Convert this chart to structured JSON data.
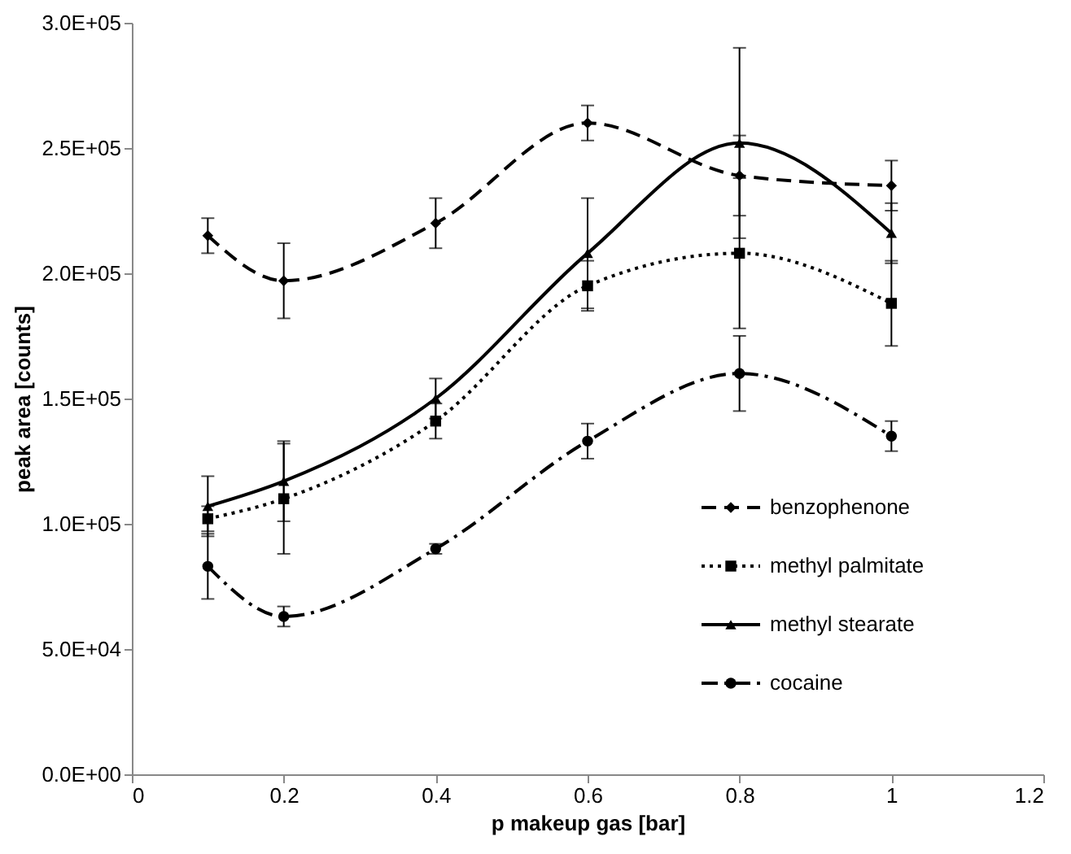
{
  "chart_data": {
    "type": "line",
    "xlabel": "p makeup gas [bar]",
    "ylabel": "peak area [counts]",
    "xlim": [
      0,
      1.2
    ],
    "xticks": [
      0,
      0.2,
      0.4,
      0.6,
      0.8,
      1,
      1.2
    ],
    "ylim": [
      0,
      300000
    ],
    "yticks": [
      {
        "value": 0,
        "label": "0.0E+00"
      },
      {
        "value": 50000,
        "label": "5.0E+04"
      },
      {
        "value": 100000,
        "label": "1.0E+05"
      },
      {
        "value": 150000,
        "label": "1.5E+05"
      },
      {
        "value": 200000,
        "label": "2.0E+05"
      },
      {
        "value": 250000,
        "label": "2.5E+05"
      },
      {
        "value": 300000,
        "label": "3.0E+05"
      }
    ],
    "x": [
      0.1,
      0.2,
      0.4,
      0.6,
      0.8,
      1
    ],
    "grid": false,
    "legend": "bottom right",
    "series": [
      {
        "name": "benzophenone",
        "color": "#000000",
        "marker": "diamond",
        "line_style": "dashed",
        "values": [
          215000,
          197000,
          220000,
          260000,
          239000,
          235000
        ],
        "errors": [
          7000,
          15000,
          10000,
          7000,
          16000,
          10000
        ]
      },
      {
        "name": "methyl palmitate",
        "color": "#000000",
        "marker": "square",
        "line_style": "dotted",
        "values": [
          102000,
          110000,
          141000,
          195000,
          208000,
          188000
        ],
        "errors": [
          5000,
          22000,
          7000,
          10000,
          30000,
          17000
        ]
      },
      {
        "name": "methyl stearate",
        "color": "#000000",
        "marker": "triangle",
        "line_style": "solid",
        "values": [
          107000,
          117000,
          150000,
          208000,
          252000,
          216000
        ],
        "errors": [
          12000,
          16000,
          8000,
          22000,
          38000,
          12000
        ]
      },
      {
        "name": "cocaine",
        "color": "#000000",
        "marker": "circle",
        "line_style": "dashdot",
        "values": [
          83000,
          63000,
          90000,
          133000,
          160000,
          135000
        ],
        "errors": [
          13000,
          4000,
          2000,
          7000,
          15000,
          6000
        ]
      }
    ]
  }
}
